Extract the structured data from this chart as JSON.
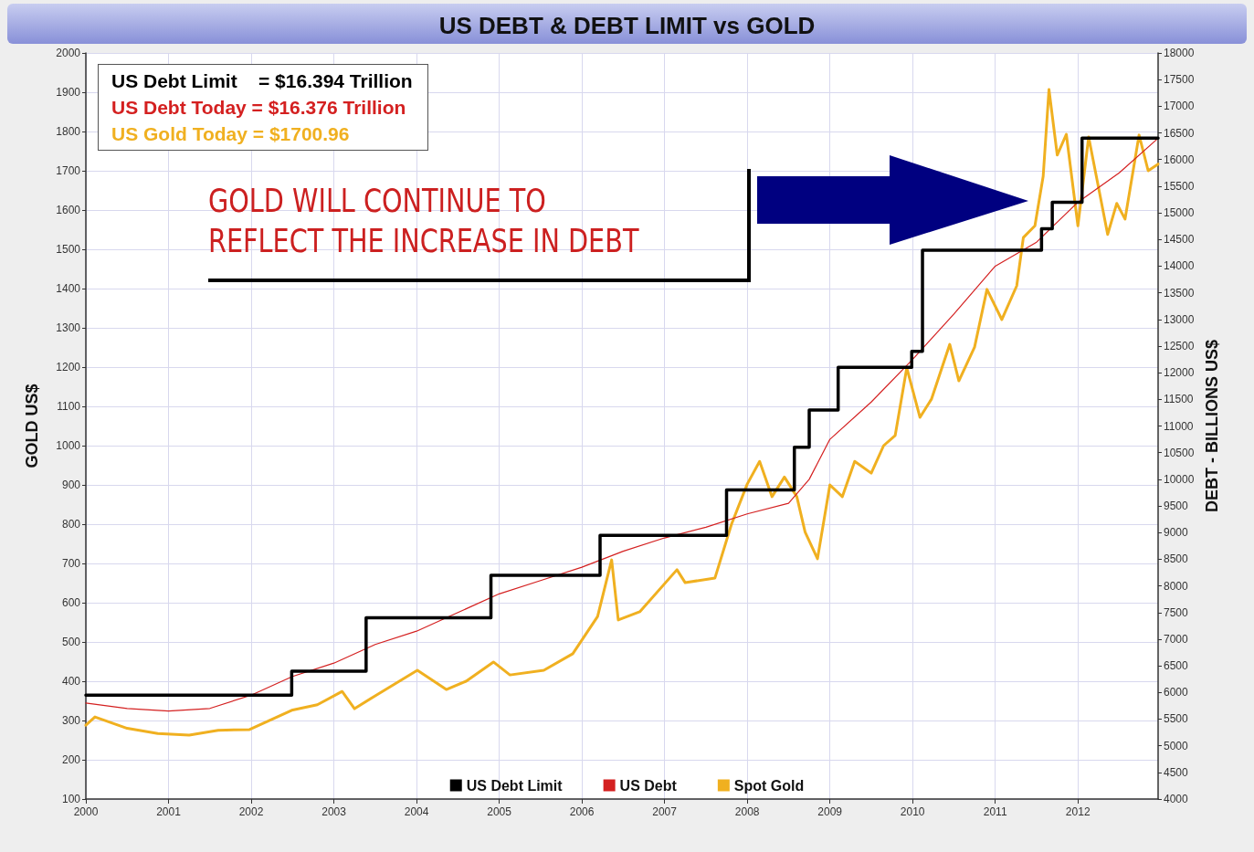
{
  "chart_data": {
    "type": "line",
    "title": "US DEBT & DEBT LIMIT vs GOLD",
    "ylabel": "GOLD US$",
    "y2label": "DEBT - BILLIONS US$",
    "annotations": [
      "US Debt Limit    = $16.394 Trillion",
      "US Debt Today = $16.376 Trillion",
      "US Gold Today = $1700.96",
      "GOLD WILL CONTINUE TO\nREFLECT THE INCREASE IN DEBT"
    ],
    "xlim": [
      2000,
      2012.97
    ],
    "xticks": [
      2000,
      2001,
      2002,
      2003,
      2004,
      2005,
      2006,
      2007,
      2008,
      2009,
      2010,
      2011,
      2012
    ],
    "ylim": [
      100,
      2000
    ],
    "yticks": [
      100,
      200,
      300,
      400,
      500,
      600,
      700,
      800,
      900,
      1000,
      1100,
      1200,
      1300,
      1400,
      1500,
      1600,
      1700,
      1800,
      1900,
      2000
    ],
    "y2lim": [
      4000,
      18000
    ],
    "y2ticks": [
      4000,
      4500,
      5000,
      5500,
      6000,
      6500,
      7000,
      7500,
      8000,
      8500,
      9000,
      9500,
      10000,
      10500,
      11000,
      11500,
      12000,
      12500,
      13000,
      13500,
      14000,
      14500,
      15000,
      15500,
      16000,
      16500,
      17000,
      17500,
      18000
    ],
    "grid": true,
    "legend": "bottom",
    "marker": "none",
    "series": [
      {
        "name": "US Debt Limit",
        "type": "step",
        "axis": "y2",
        "color": "#000000",
        "x": [
          2000,
          2002.49,
          2003.39,
          2004.9,
          2006.22,
          2007.75,
          2008.57,
          2008.75,
          2009.1,
          2009.99,
          2010.12,
          2011.56,
          2011.69,
          2012.05,
          2012.97
        ],
        "values": [
          5950,
          6400,
          7400,
          8200,
          8950,
          9800,
          10600,
          11300,
          12100,
          12400,
          14300,
          14700,
          15200,
          16400,
          16400
        ]
      },
      {
        "name": "US Debt",
        "axis": "y2",
        "color": "#d42020",
        "x": [
          2000,
          2000.5,
          2001,
          2001.5,
          2002,
          2002.5,
          2003,
          2003.5,
          2004,
          2004.5,
          2005,
          2005.5,
          2006,
          2006.5,
          2007,
          2007.5,
          2008,
          2008.5,
          2008.75,
          2009,
          2009.5,
          2010,
          2010.5,
          2011,
          2011.5,
          2012,
          2012.5,
          2012.97
        ],
        "values": [
          5800,
          5700,
          5650,
          5700,
          5950,
          6300,
          6550,
          6900,
          7150,
          7500,
          7850,
          8100,
          8350,
          8650,
          8900,
          9100,
          9350,
          9550,
          10000,
          10750,
          11450,
          12250,
          13100,
          14000,
          14450,
          15200,
          15750,
          16400
        ]
      },
      {
        "name": "Spot Gold",
        "axis": "y",
        "color": "#f0b020",
        "x": [
          2000,
          2000.11,
          2000.5,
          2000.87,
          2001.25,
          2001.6,
          2001.98,
          2002.49,
          2002.8,
          2003.1,
          2003.25,
          2003.5,
          2004.01,
          2004.36,
          2004.6,
          2004.93,
          2005.13,
          2005.54,
          2005.89,
          2006.19,
          2006.36,
          2006.44,
          2006.7,
          2007.15,
          2007.25,
          2007.61,
          2007.81,
          2008,
          2008.15,
          2008.3,
          2008.45,
          2008.6,
          2008.7,
          2008.85,
          2009,
          2009.15,
          2009.3,
          2009.5,
          2009.65,
          2009.79,
          2009.93,
          2010.09,
          2010.23,
          2010.45,
          2010.56,
          2010.75,
          2010.9,
          2011.08,
          2011.26,
          2011.34,
          2011.48,
          2011.58,
          2011.65,
          2011.75,
          2011.86,
          2012,
          2012.13,
          2012.36,
          2012.47,
          2012.57,
          2012.74,
          2012.85,
          2012.97
        ],
        "values": [
          288,
          309,
          280,
          267,
          263,
          275,
          277,
          326,
          340,
          374,
          330,
          363,
          428,
          379,
          400,
          449,
          416,
          428,
          470,
          565,
          709,
          556,
          577,
          684,
          651,
          663,
          800,
          902,
          960,
          870,
          920,
          870,
          780,
          712,
          900,
          870,
          960,
          930,
          1000,
          1026,
          1198,
          1072,
          1119,
          1258,
          1165,
          1251,
          1398,
          1321,
          1407,
          1530,
          1560,
          1686,
          1907,
          1740,
          1793,
          1560,
          1786,
          1538,
          1617,
          1577,
          1791,
          1700,
          1717
        ]
      }
    ]
  }
}
